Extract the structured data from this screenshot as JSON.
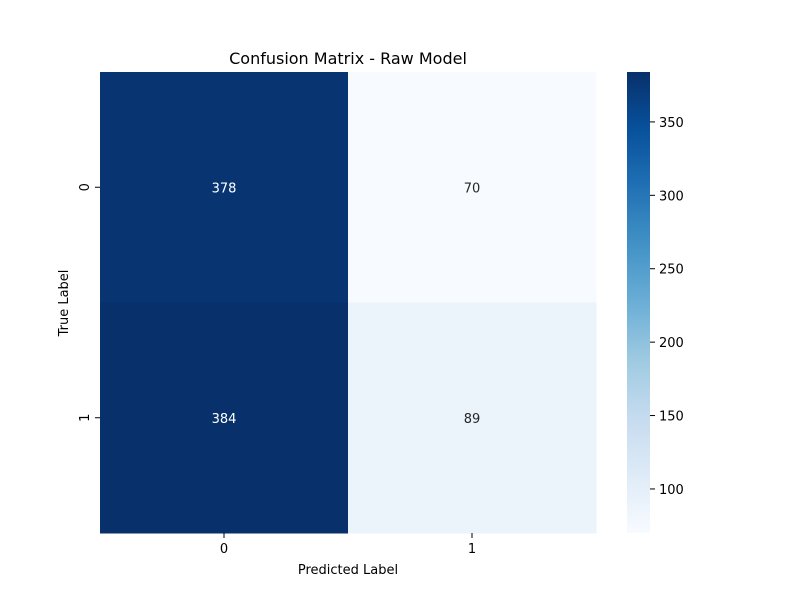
{
  "chart_data": {
    "type": "heatmap",
    "title": "Confusion Matrix - Raw Model",
    "xlabel": "Predicted Label",
    "ylabel": "True Label",
    "x_categories": [
      "0",
      "1"
    ],
    "y_categories": [
      "0",
      "1"
    ],
    "values": [
      [
        378,
        70
      ],
      [
        384,
        89
      ]
    ],
    "colormap": "Blues",
    "colorbar": {
      "min": 70,
      "max": 384,
      "ticks": [
        100,
        150,
        200,
        250,
        300,
        350
      ],
      "tick_labels": [
        "100",
        "150",
        "200",
        "250",
        "300",
        "350"
      ]
    },
    "grid": false,
    "legend": "colorbar-right"
  }
}
